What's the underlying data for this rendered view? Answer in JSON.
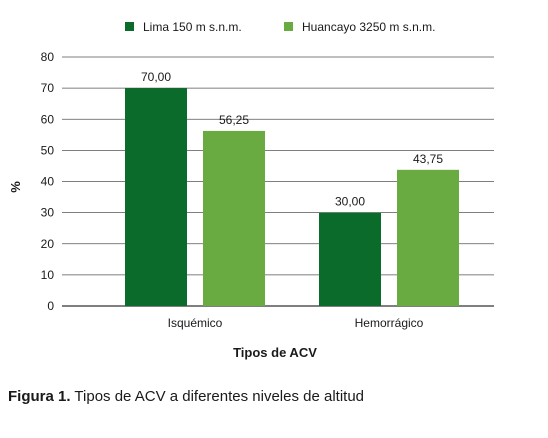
{
  "chart_data": {
    "type": "bar",
    "categories": [
      "Isquémico",
      "Hemorrágico"
    ],
    "series": [
      {
        "name": "Lima 150 m s.n.m.",
        "values": [
          70.0,
          30.0
        ],
        "labels": [
          "70,00",
          "30,00"
        ],
        "color": "#0b6b2a"
      },
      {
        "name": "Huancayo 3250 m s.n.m.",
        "values": [
          56.25,
          43.75
        ],
        "labels": [
          "56,25",
          "43,75"
        ],
        "color": "#6aab41"
      }
    ],
    "xlabel": "Tipos de ACV",
    "ylabel": "%",
    "ylim": [
      0,
      80
    ],
    "yticks": [
      0,
      10,
      20,
      30,
      40,
      50,
      60,
      70,
      80
    ],
    "grid": true,
    "legend": "top"
  },
  "caption": {
    "label": "Figura 1.",
    "text": " Tipos de ACV a diferentes niveles de altitud"
  }
}
